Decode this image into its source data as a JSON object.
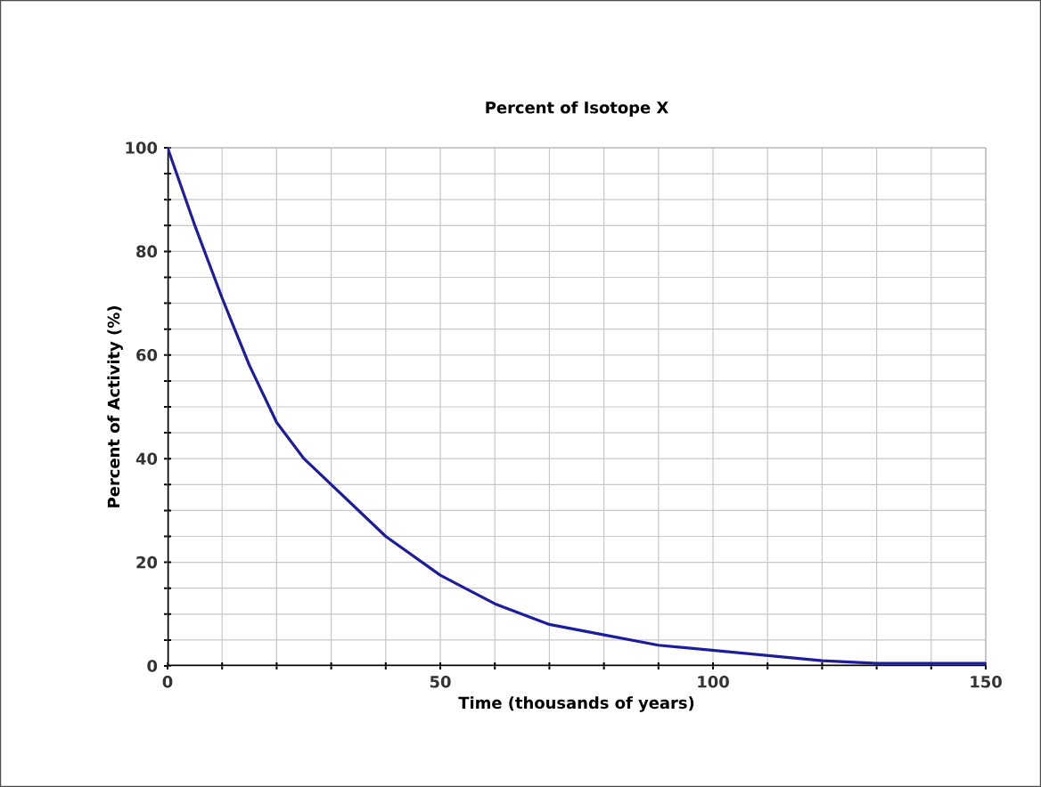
{
  "chart_data": {
    "type": "line",
    "title": "Percent of Isotope X",
    "xlabel": "Time (thousands of years)",
    "ylabel": "Percent of Activity (%)",
    "x": [
      0,
      5,
      10,
      15,
      20,
      25,
      30,
      40,
      50,
      60,
      70,
      80,
      90,
      100,
      110,
      120,
      130,
      140,
      150
    ],
    "series": [
      {
        "color": "#1c1c9c",
        "values": [
          100,
          85,
          71,
          58,
          47,
          40,
          35,
          25,
          17.5,
          12,
          8,
          6,
          4,
          3,
          2,
          1,
          0.5,
          0.5,
          0.5
        ]
      }
    ],
    "xlim": [
      0,
      150
    ],
    "ylim": [
      0,
      100
    ],
    "xticks": [
      0,
      {
        "value": 10,
        "label": null
      },
      {
        "value": 20,
        "label": null
      },
      {
        "value": 30,
        "label": null
      },
      {
        "value": 40,
        "label": null
      },
      50,
      {
        "value": 60,
        "label": null
      },
      {
        "value": 70,
        "label": null
      },
      {
        "value": 80,
        "label": null
      },
      {
        "value": 90,
        "label": null
      },
      100,
      {
        "value": 110,
        "label": null
      },
      {
        "value": 120,
        "label": null
      },
      {
        "value": 130,
        "label": null
      },
      {
        "value": 140,
        "label": null
      },
      150
    ],
    "yticks": [
      0,
      {
        "value": 5,
        "label": null
      },
      {
        "value": 10,
        "label": null
      },
      {
        "value": 15,
        "label": null
      },
      20,
      {
        "value": 25,
        "label": null
      },
      {
        "value": 30,
        "label": null
      },
      {
        "value": 35,
        "label": null
      },
      40,
      {
        "value": 45,
        "label": null
      },
      {
        "value": 50,
        "label": null
      },
      {
        "value": 55,
        "label": null
      },
      60,
      {
        "value": 65,
        "label": null
      },
      {
        "value": 70,
        "label": null
      },
      {
        "value": 75,
        "label": null
      },
      80,
      {
        "value": 85,
        "label": null
      },
      {
        "value": 90,
        "label": null
      },
      {
        "value": 95,
        "label": null
      },
      100
    ],
    "grid": true,
    "marker": "none",
    "line_style": "solid"
  }
}
